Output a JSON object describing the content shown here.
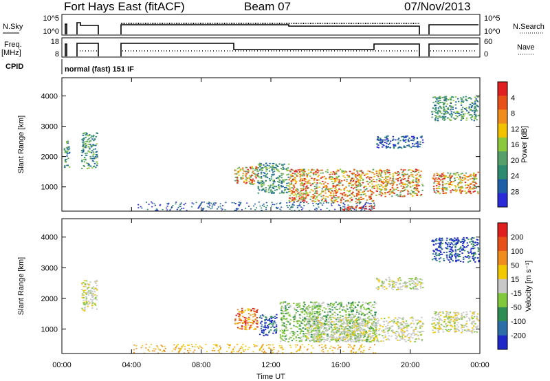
{
  "header": {
    "title": "Fort Hays East (fitACF)",
    "beam": "Beam 07",
    "date": "07/Nov/2013"
  },
  "top_panels": {
    "nsky_label": "N.Sky",
    "nsky_ticks": [
      "10^5",
      "10^0"
    ],
    "nsearch_label": "N.Search",
    "nsearch_ticks": [
      "10^5",
      "10^0"
    ],
    "freq_label": "Freq.",
    "freq_unit": "[MHz]",
    "freq_ticks": [
      "18",
      "8"
    ],
    "nave_label": "Nave",
    "nave_ticks": [
      "60",
      "0"
    ],
    "cpid_label": "CPID",
    "cpid_text": "normal (fast) 151 IF"
  },
  "colors": {
    "power_scale": [
      "#2a2ad8",
      "#1f5fa8",
      "#2e8b6f",
      "#55a06a",
      "#8cc83c",
      "#f2c200",
      "#f08c1e",
      "#e8501a",
      "#e02020"
    ],
    "velocity_scale": [
      "#1e28c8",
      "#2e6ea8",
      "#2e8c55",
      "#82c83c",
      "#c8c8c8",
      "#f2c800",
      "#f08c1e",
      "#e8501a",
      "#e01e1e"
    ]
  },
  "chart_data": [
    {
      "type": "heatmap",
      "panel": "power",
      "ylabel": "Slant Range [km]",
      "yticks": [
        "1000",
        "2000",
        "3000",
        "4000"
      ],
      "ylim": [
        200,
        4600
      ],
      "xlim": [
        "00:00",
        "24:00"
      ],
      "xticks": [
        "00:00",
        "04:00",
        "08:00",
        "12:00",
        "16:00",
        "20:00",
        "00:00"
      ],
      "colorbar": {
        "label": "Power [dB]",
        "range": [
          0,
          32
        ],
        "ticks": [
          "4",
          "8",
          "12",
          "16",
          "20",
          "24",
          "28"
        ]
      },
      "regions": [
        {
          "t0": 0.1,
          "t1": 0.4,
          "r0": 1600,
          "r1": 2600,
          "level": "mid"
        },
        {
          "t0": 1.1,
          "t1": 2.0,
          "r0": 1600,
          "r1": 2800,
          "level": "mid"
        },
        {
          "t0": 9.9,
          "t1": 11.2,
          "r0": 1100,
          "r1": 1700,
          "level": "high"
        },
        {
          "t0": 11.2,
          "t1": 13.0,
          "r0": 800,
          "r1": 1800,
          "level": "mid"
        },
        {
          "t0": 13.0,
          "t1": 17.9,
          "r0": 500,
          "r1": 1600,
          "level": "high"
        },
        {
          "t0": 16.0,
          "t1": 17.9,
          "r0": 250,
          "r1": 400,
          "level": "very-high"
        },
        {
          "t0": 18.0,
          "t1": 20.7,
          "r0": 700,
          "r1": 1600,
          "level": "high"
        },
        {
          "t0": 18.0,
          "t1": 20.7,
          "r0": 2300,
          "r1": 2700,
          "level": "low"
        },
        {
          "t0": 21.2,
          "t1": 23.9,
          "r0": 800,
          "r1": 1500,
          "level": "high"
        },
        {
          "t0": 21.2,
          "t1": 23.9,
          "r0": 3200,
          "r1": 4000,
          "level": "mid"
        }
      ]
    },
    {
      "type": "heatmap",
      "panel": "velocity",
      "ylabel": "Slant Range [km]",
      "yticks": [
        "1000",
        "2000",
        "3000",
        "4000"
      ],
      "ylim": [
        200,
        4600
      ],
      "xlabel": "Time UT",
      "xlim": [
        "00:00",
        "24:00"
      ],
      "xticks": [
        "00:00",
        "04:00",
        "08:00",
        "12:00",
        "16:00",
        "20:00",
        "00:00"
      ],
      "colorbar": {
        "label": "Velocity [m s⁻¹]",
        "range": [
          -250,
          250
        ],
        "ticks": [
          "200",
          "100",
          "50",
          "15",
          "-15",
          "-50",
          "-100",
          "-200"
        ]
      },
      "regions": [
        {
          "t0": 1.1,
          "t1": 2.0,
          "r0": 1600,
          "r1": 2600,
          "level": "near-zero"
        },
        {
          "t0": 9.9,
          "t1": 11.2,
          "r0": 1000,
          "r1": 1700,
          "level": "negative"
        },
        {
          "t0": 11.3,
          "t1": 12.3,
          "r0": 800,
          "r1": 1500,
          "level": "positive-high"
        },
        {
          "t0": 12.5,
          "t1": 18.0,
          "r0": 600,
          "r1": 1900,
          "level": "positive-low"
        },
        {
          "t0": 14.0,
          "t1": 20.7,
          "r0": 600,
          "r1": 1400,
          "level": "near-zero"
        },
        {
          "t0": 18.0,
          "t1": 20.7,
          "r0": 2300,
          "r1": 2700,
          "level": "near-zero"
        },
        {
          "t0": 21.2,
          "t1": 23.9,
          "r0": 900,
          "r1": 1600,
          "level": "near-zero"
        },
        {
          "t0": 21.2,
          "t1": 23.9,
          "r0": 3200,
          "r1": 4000,
          "level": "positive-high"
        }
      ]
    }
  ]
}
